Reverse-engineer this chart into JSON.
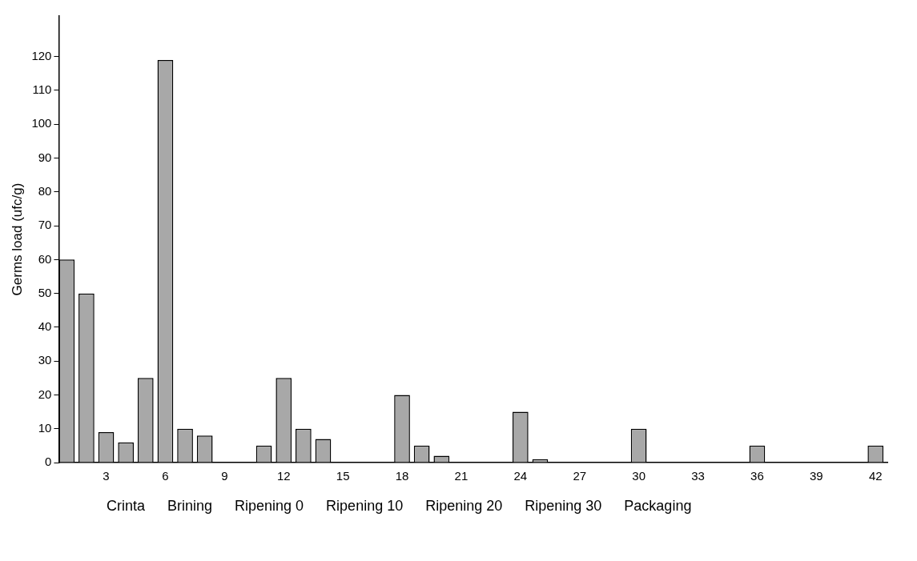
{
  "chart_data": {
    "type": "bar",
    "ylabel": "Germs load (ufc/g)",
    "x": [
      1,
      2,
      3,
      4,
      5,
      6,
      7,
      8,
      9,
      10,
      11,
      12,
      13,
      14,
      15,
      16,
      17,
      18,
      19,
      20,
      21,
      22,
      23,
      24,
      25,
      26,
      27,
      28,
      29,
      30,
      31,
      32,
      33,
      34,
      35,
      36,
      37,
      38,
      39,
      40,
      41,
      42
    ],
    "values": [
      60,
      50,
      9,
      6,
      25,
      119,
      10,
      8,
      0,
      0,
      5,
      25,
      10,
      7,
      0,
      0,
      0,
      20,
      5,
      2,
      0,
      0,
      0,
      15,
      1,
      0,
      0,
      0,
      0,
      10,
      0,
      0,
      0,
      0,
      0,
      5,
      0,
      0,
      0,
      0,
      0,
      5
    ],
    "color": "#a8a8a8",
    "xlim": [
      0.6,
      42.6
    ],
    "xticks": [
      3,
      6,
      9,
      12,
      15,
      18,
      21,
      24,
      27,
      30,
      33,
      36,
      39,
      42
    ],
    "ylim": [
      0,
      132
    ],
    "yticks": [
      0,
      10,
      20,
      30,
      40,
      50,
      60,
      70,
      80,
      90,
      100,
      110,
      120
    ],
    "grid": false,
    "legend": false,
    "annotations": [
      "Crinta",
      "Brining",
      "Ripening 0",
      "Ripening 10",
      "Ripening 20",
      "Ripening 30",
      "Packaging"
    ]
  }
}
